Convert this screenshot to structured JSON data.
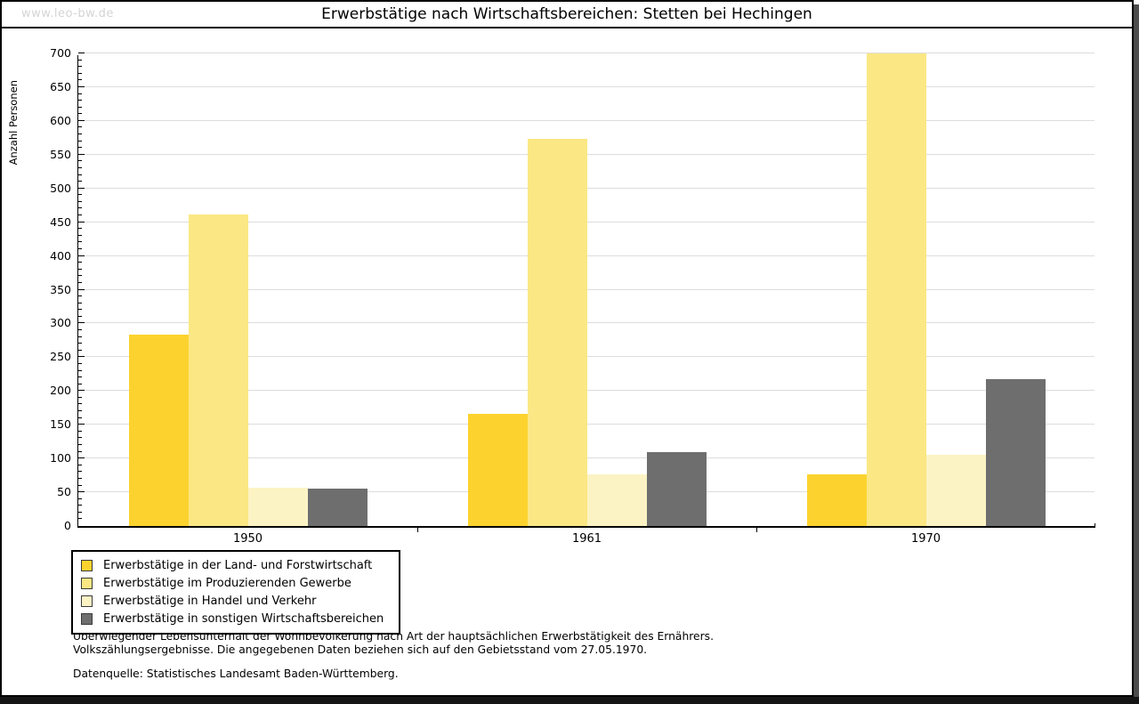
{
  "watermark": "www.leo-bw.de",
  "title": "Erwerbstätige nach Wirtschaftsbereichen: Stetten bei Hechingen",
  "chart_data": {
    "type": "bar",
    "title": "Erwerbstätige nach Wirtschaftsbereichen: Stetten bei Hechingen",
    "categories": [
      "1950",
      "1961",
      "1970"
    ],
    "series": [
      {
        "name": "Erwerbstätige in der Land- und Forstwirtschaft",
        "color": "#FCD32E",
        "values": [
          283,
          166,
          77
        ]
      },
      {
        "name": "Erwerbstätige im Produzierenden Gewerbe",
        "color": "#FBE783",
        "values": [
          462,
          573,
          700
        ]
      },
      {
        "name": "Erwerbstätige in Handel und Verkehr",
        "color": "#FCF3C4",
        "values": [
          57,
          77,
          105
        ]
      },
      {
        "name": "Erwerbstätige in sonstigen Wirtschaftsbereichen",
        "color": "#6E6E6E",
        "values": [
          55,
          110,
          218
        ]
      }
    ],
    "xlabel": "",
    "ylabel": "Anzahl Personen",
    "ylim": [
      0,
      700
    ],
    "yticks": [
      0,
      50,
      100,
      150,
      200,
      250,
      300,
      350,
      400,
      450,
      500,
      550,
      600,
      650,
      700
    ],
    "minor_tick_step": 10,
    "grid": true,
    "gridline_color": "#DDDDDD",
    "legend_position": "bottom-left"
  },
  "footnotes": {
    "line1": "Überwiegender Lebensunterhalt der Wohnbevölkerung nach Art der hauptsächlichen Erwerbstätigkeit des Ernährers.",
    "line2": "Volkszählungsergebnisse. Die angegebenen Daten beziehen sich auf den Gebietsstand vom 27.05.1970.",
    "source": "Datenquelle: Statistisches Landesamt Baden-Württemberg."
  }
}
